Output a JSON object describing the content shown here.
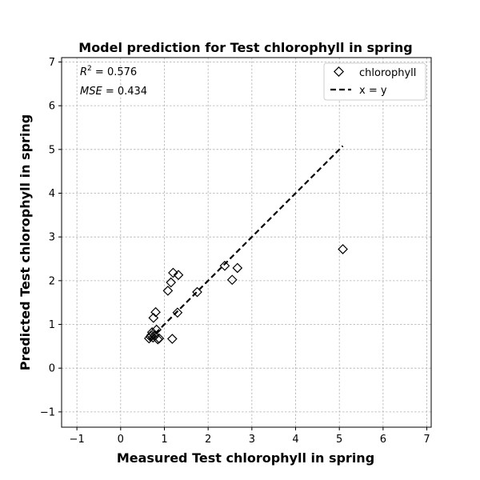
{
  "chart_data": {
    "type": "scatter",
    "title": "Model prediction for Test chlorophyll in spring",
    "xlabel": "Measured Test chlorophyll in spring",
    "ylabel": "Predicted Test chlorophyll in spring",
    "xlim": [
      -1.35,
      7.1
    ],
    "ylim": [
      -1.35,
      7.1
    ],
    "xticks": [
      -1,
      0,
      1,
      2,
      3,
      4,
      5,
      6,
      7
    ],
    "yticks": [
      -1,
      0,
      1,
      2,
      3,
      4,
      5,
      6,
      7
    ],
    "grid": true,
    "legend_position": "top-right",
    "annotation": {
      "r2_symbol": "R",
      "r2_exponent": "2",
      "r2_value": " = 0.576",
      "mse_symbol": "MSE",
      "mse_value": " = 0.434"
    },
    "series": [
      {
        "name": "chlorophyll",
        "marker": "diamond",
        "color": "#000000",
        "points": [
          [
            0.65,
            0.68
          ],
          [
            0.68,
            0.72
          ],
          [
            0.7,
            0.75
          ],
          [
            0.72,
            0.82
          ],
          [
            0.74,
            0.7
          ],
          [
            0.75,
            1.15
          ],
          [
            0.78,
            0.74
          ],
          [
            0.8,
            1.28
          ],
          [
            0.82,
            0.88
          ],
          [
            0.85,
            0.66
          ],
          [
            0.88,
            0.68
          ],
          [
            1.08,
            1.77
          ],
          [
            1.15,
            1.96
          ],
          [
            1.18,
            0.67
          ],
          [
            1.2,
            2.18
          ],
          [
            1.3,
            1.27
          ],
          [
            1.32,
            2.13
          ],
          [
            1.75,
            1.74
          ],
          [
            2.38,
            2.34
          ],
          [
            2.55,
            2.02
          ],
          [
            2.67,
            2.29
          ],
          [
            5.08,
            2.72
          ]
        ]
      },
      {
        "name": "x = y",
        "style": "dashed",
        "color": "#000000",
        "points": [
          [
            0.65,
            0.65
          ],
          [
            5.08,
            5.08
          ]
        ]
      }
    ]
  }
}
